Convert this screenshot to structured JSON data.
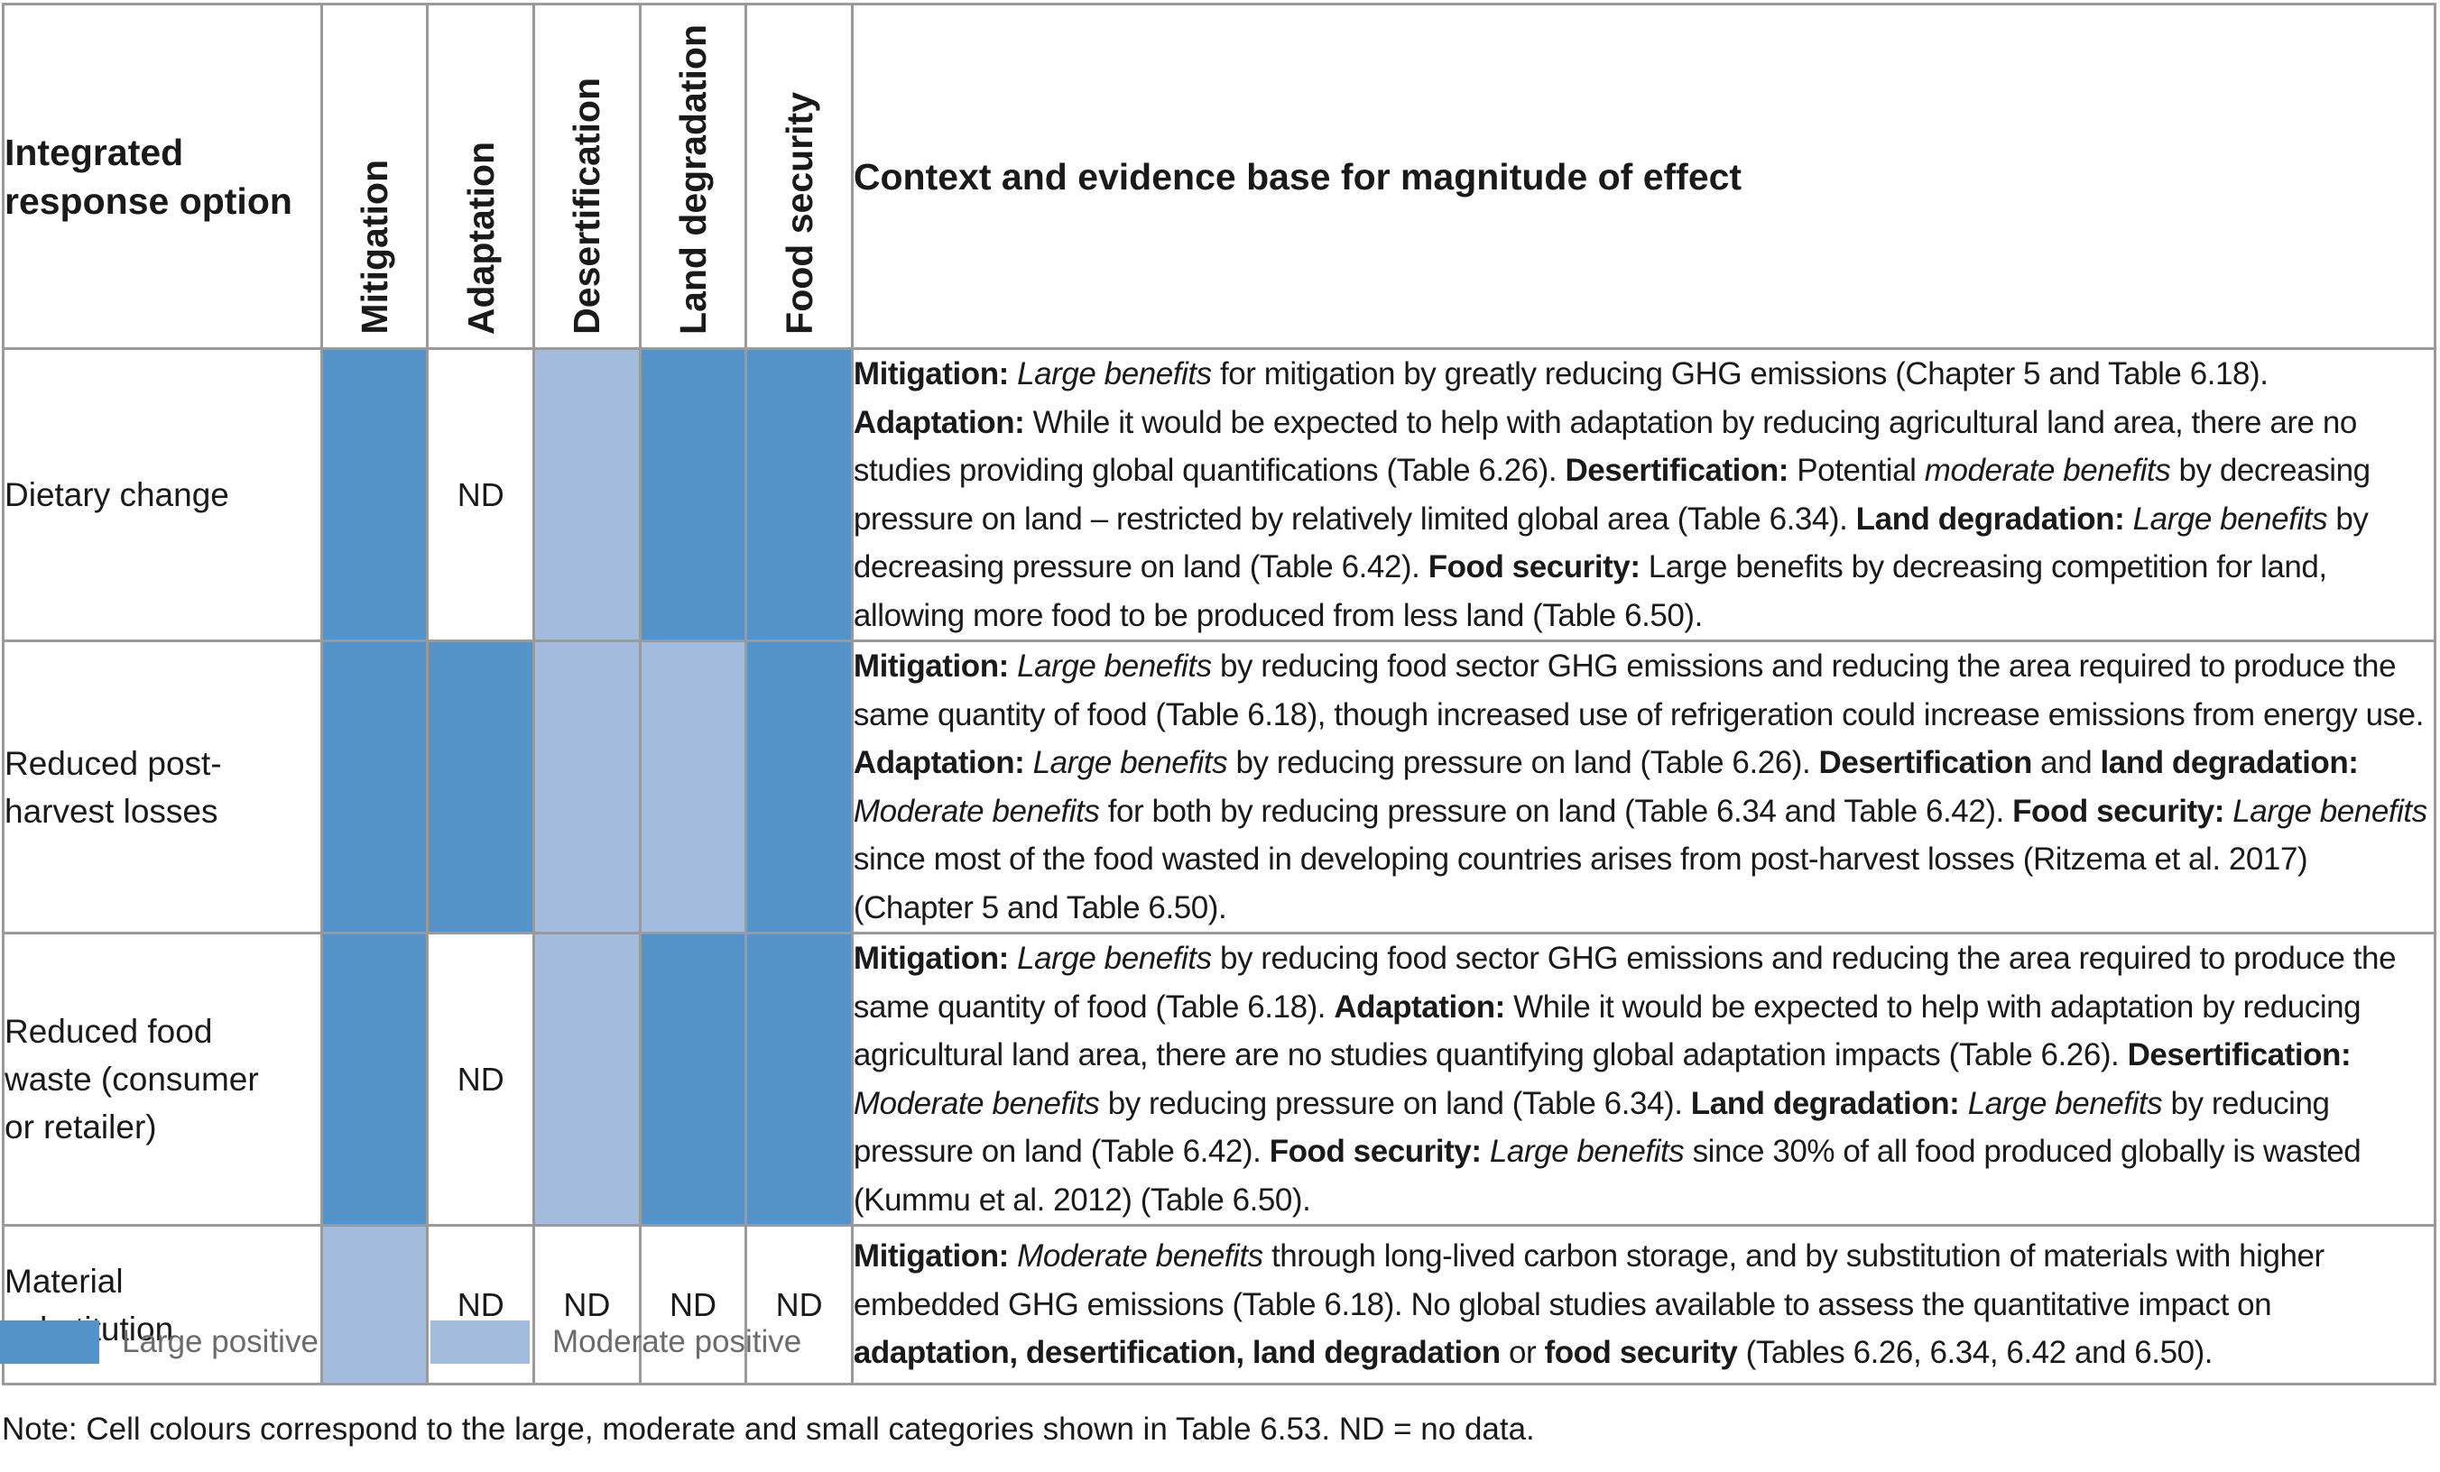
{
  "table": {
    "header": {
      "option_line1": "Integrated",
      "option_line2": "response option",
      "impacts": [
        "Mitigation",
        "Adaptation",
        "Desertification",
        "Land degradation",
        "Food security"
      ],
      "context": "Context and evidence base for magnitude of effect"
    },
    "rows": [
      {
        "option_lines": [
          "Dietary change"
        ],
        "cells": [
          {
            "level": "large",
            "text": ""
          },
          {
            "level": "nd",
            "text": "ND"
          },
          {
            "level": "moderate",
            "text": ""
          },
          {
            "level": "large",
            "text": ""
          },
          {
            "level": "large",
            "text": ""
          }
        ],
        "context": [
          {
            "b": "Mitigation:"
          },
          {
            "t": " "
          },
          {
            "i": "Large benefits"
          },
          {
            "t": " for mitigation by greatly reducing GHG emissions (Chapter 5 and Table 6.18). "
          },
          {
            "b": "Adaptation:"
          },
          {
            "t": " While it would be expected to help with adaptation by reducing agricultural land area, there are no studies providing global quantifications (Table 6.26). "
          },
          {
            "b": "Desertification:"
          },
          {
            "t": " Potential "
          },
          {
            "i": "moderate benefits"
          },
          {
            "t": " by decreasing pressure on land – restricted by relatively limited global area (Table 6.34). "
          },
          {
            "b": "Land degradation:"
          },
          {
            "t": " "
          },
          {
            "i": "Large benefits"
          },
          {
            "t": " by decreasing pressure on land (Table 6.42). "
          },
          {
            "b": "Food security:"
          },
          {
            "t": " Large benefits by decreasing competition for land, allowing more food to be produced from less land (Table 6.50)."
          }
        ]
      },
      {
        "option_lines": [
          "Reduced post-",
          "harvest losses"
        ],
        "cells": [
          {
            "level": "large",
            "text": ""
          },
          {
            "level": "large",
            "text": ""
          },
          {
            "level": "moderate",
            "text": ""
          },
          {
            "level": "moderate",
            "text": ""
          },
          {
            "level": "large",
            "text": ""
          }
        ],
        "context": [
          {
            "b": "Mitigation:"
          },
          {
            "t": " "
          },
          {
            "i": "Large benefits"
          },
          {
            "t": " by reducing food sector GHG emissions and reducing the area required to produce the same quantity of food (Table 6.18), though increased use of refrigeration could increase emissions from energy use. "
          },
          {
            "b": "Adaptation:"
          },
          {
            "t": " "
          },
          {
            "i": "Large benefits"
          },
          {
            "t": " by reducing pressure on land (Table 6.26). "
          },
          {
            "b": "Desertification"
          },
          {
            "t": " and "
          },
          {
            "b": "land degradation:"
          },
          {
            "t": " "
          },
          {
            "i": "Moderate benefits"
          },
          {
            "t": " for both by reducing pressure on land (Table 6.34 and Table 6.42). "
          },
          {
            "b": "Food security:"
          },
          {
            "t": " "
          },
          {
            "i": "Large benefits"
          },
          {
            "t": " since most of the food wasted in developing countries arises from post-harvest losses (Ritzema et al. 2017) (Chapter 5 and Table 6.50)."
          }
        ]
      },
      {
        "option_lines": [
          "Reduced food",
          "waste (consumer",
          "or retailer)"
        ],
        "cells": [
          {
            "level": "large",
            "text": ""
          },
          {
            "level": "nd",
            "text": "ND"
          },
          {
            "level": "moderate",
            "text": ""
          },
          {
            "level": "large",
            "text": ""
          },
          {
            "level": "large",
            "text": ""
          }
        ],
        "context": [
          {
            "b": "Mitigation:"
          },
          {
            "t": " "
          },
          {
            "i": "Large benefits"
          },
          {
            "t": " by reducing food sector GHG emissions and reducing the area required to produce the same quantity of food (Table 6.18). "
          },
          {
            "b": "Adaptation:"
          },
          {
            "t": " While it would be expected to help with adaptation by reducing agricultural land area, there are no studies quantifying global adaptation impacts (Table 6.26). "
          },
          {
            "b": "Desertification:"
          },
          {
            "t": " "
          },
          {
            "i": "Moderate benefits"
          },
          {
            "t": " by reducing pressure on land (Table 6.34). "
          },
          {
            "b": "Land degradation:"
          },
          {
            "t": " "
          },
          {
            "i": "Large benefits"
          },
          {
            "t": " by reducing pressure on land (Table 6.42). "
          },
          {
            "b": "Food security:"
          },
          {
            "t": " "
          },
          {
            "i": "Large benefits"
          },
          {
            "t": " since 30% of all food produced globally is wasted (Kummu et al. 2012) (Table 6.50)."
          }
        ]
      },
      {
        "option_lines": [
          "Material",
          "substitution"
        ],
        "cells": [
          {
            "level": "moderate",
            "text": ""
          },
          {
            "level": "nd",
            "text": "ND"
          },
          {
            "level": "nd",
            "text": "ND"
          },
          {
            "level": "nd",
            "text": "ND"
          },
          {
            "level": "nd",
            "text": "ND"
          }
        ],
        "context": [
          {
            "b": "Mitigation:"
          },
          {
            "t": " "
          },
          {
            "i": "Moderate benefits"
          },
          {
            "t": " through long-lived carbon storage, and by substitution of materials with higher embedded GHG emissions (Table 6.18). No global studies available to assess the quantitative impact on "
          },
          {
            "b": "adaptation, desertification, land degradation"
          },
          {
            "t": " or "
          },
          {
            "b": "food security"
          },
          {
            "t": " (Tables 6.26, 6.34, 6.42 and 6.50)."
          }
        ]
      }
    ]
  },
  "legend": {
    "large_label": "Large positive",
    "moderate_label": "Moderate positive",
    "large_color": "#5592c7",
    "moderate_color": "#a3bcdd"
  },
  "note": "Note: Cell colours correspond to the large, moderate and small categories shown in Table 6.53. ND = no data."
}
